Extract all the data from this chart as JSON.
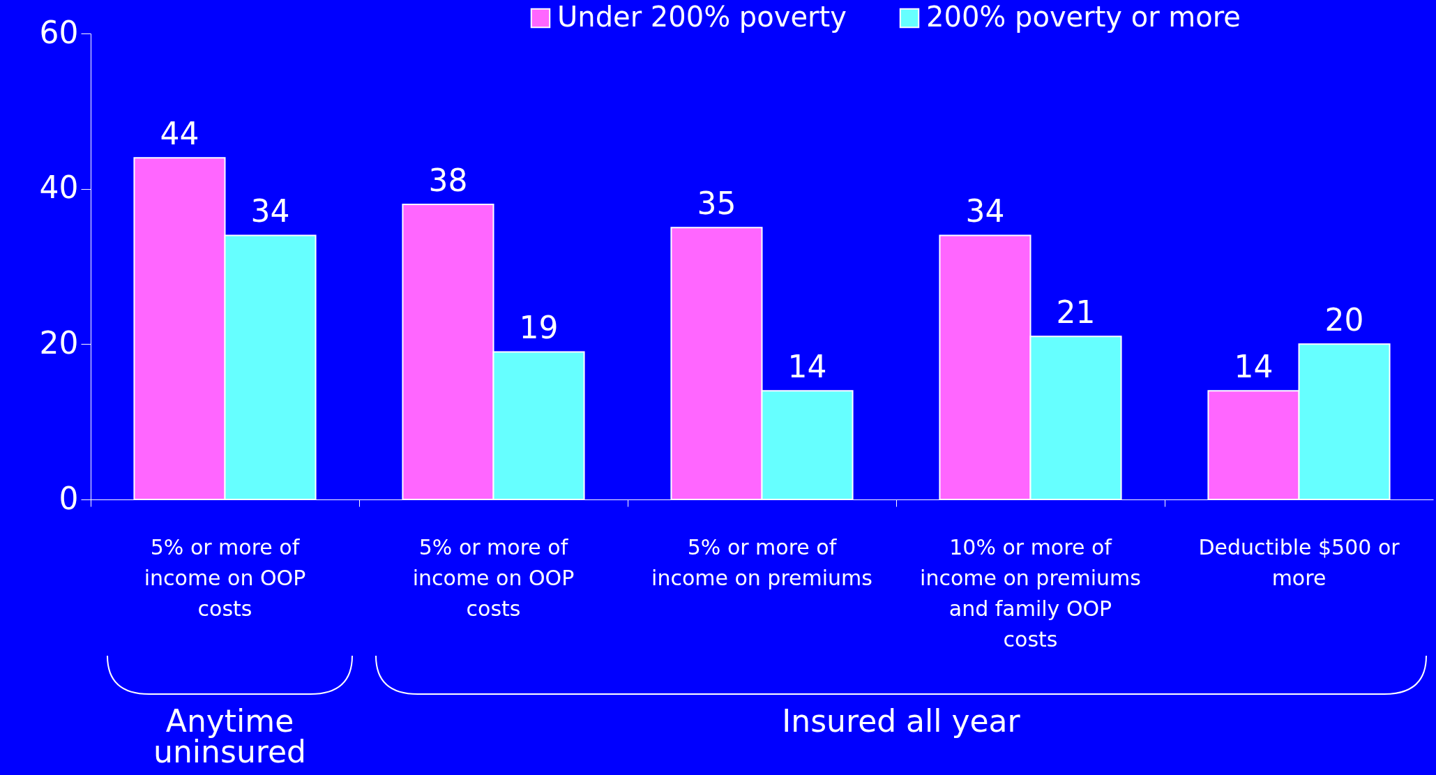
{
  "chart_data": {
    "type": "bar",
    "categories": [
      "5% or more of income on OOP costs",
      "5% or more of income on OOP costs ",
      "5% or more of income on premiums",
      "10% or more of income on premiums and family OOP costs",
      "Deductible $500 or more"
    ],
    "series": [
      {
        "name": "Under 200% poverty",
        "color": "#ff66ff",
        "values": [
          44,
          38,
          35,
          34,
          14
        ]
      },
      {
        "name": "200% poverty or more",
        "color": "#66ffff",
        "values": [
          34,
          19,
          14,
          21,
          20
        ]
      }
    ],
    "ylim": [
      0,
      60
    ],
    "yticks": [
      0,
      20,
      40,
      60
    ],
    "grid": false,
    "legend": "top right",
    "data_labels": true,
    "annotations": [
      "Anytime uninsured",
      "Insured all year"
    ]
  }
}
